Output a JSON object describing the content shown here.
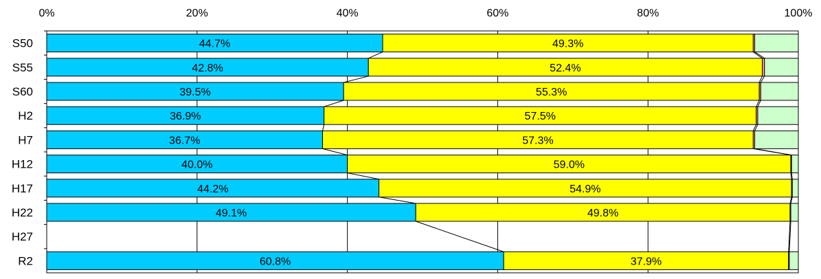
{
  "chart_data": {
    "type": "bar",
    "orientation": "horizontal",
    "stacked": true,
    "percent_scale": true,
    "categories": [
      "S50",
      "S55",
      "S60",
      "H2",
      "H7",
      "H12",
      "H17",
      "H22",
      "H27",
      "R2"
    ],
    "series": [
      {
        "color": "#00CCFF",
        "values": [
          44.7,
          42.8,
          39.5,
          36.9,
          36.7,
          40.0,
          44.2,
          49.1,
          null,
          60.8
        ],
        "labels": [
          "44.7%",
          "42.8%",
          "39.5%",
          "36.9%",
          "36.7%",
          "40.0%",
          "44.2%",
          "49.1%",
          "",
          "60.8%"
        ]
      },
      {
        "color": "#FFFF00",
        "values": [
          49.3,
          52.4,
          55.3,
          57.5,
          57.3,
          59.0,
          54.9,
          49.8,
          null,
          37.9
        ],
        "labels": [
          "49.3%",
          "52.4%",
          "55.3%",
          "57.5%",
          "57.3%",
          "59.0%",
          "54.9%",
          "49.8%",
          "",
          "37.9%"
        ]
      },
      {
        "color": "#FF9999",
        "values": [
          0.2,
          0.3,
          0.2,
          0.2,
          0.2,
          0.1,
          0.1,
          0.1,
          null,
          0.1
        ]
      },
      {
        "color": "#CCFFCC",
        "values": [
          5.8,
          4.5,
          5.0,
          5.4,
          5.8,
          0.9,
          0.8,
          1.0,
          null,
          1.2
        ]
      }
    ],
    "xlim": [
      0,
      100
    ],
    "x_ticks": [
      "0%",
      "20%",
      "40%",
      "60%",
      "80%",
      "100%"
    ],
    "series_lines": true,
    "grid": true,
    "title": "",
    "xlabel": "",
    "ylabel": ""
  }
}
